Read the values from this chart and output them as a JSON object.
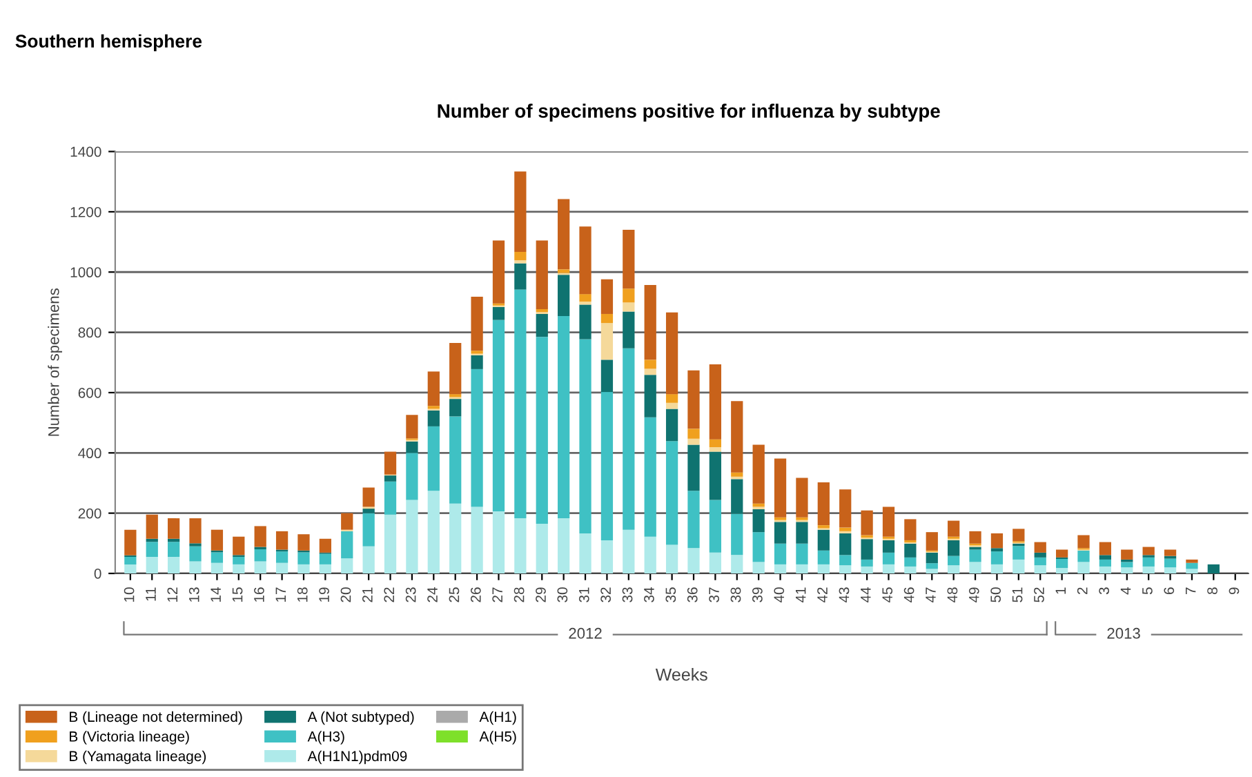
{
  "chart_data": {
    "type": "bar",
    "stacked": true,
    "title": "Southern hemisphere",
    "subtitle": "Number of specimens positive for influenza by subtype",
    "xlabel": "Weeks",
    "ylabel": "Number of specimens",
    "annotations": [
      "2012",
      "2013"
    ],
    "categories": [
      "10",
      "11",
      "12",
      "13",
      "14",
      "15",
      "16",
      "17",
      "18",
      "19",
      "20",
      "21",
      "22",
      "23",
      "24",
      "25",
      "26",
      "27",
      "28",
      "29",
      "30",
      "31",
      "32",
      "33",
      "34",
      "35",
      "36",
      "37",
      "38",
      "39",
      "40",
      "41",
      "42",
      "43",
      "44",
      "45",
      "46",
      "47",
      "48",
      "49",
      "50",
      "51",
      "52",
      "1",
      "2",
      "3",
      "4",
      "5",
      "6",
      "7",
      "8",
      "9"
    ],
    "ylim": [
      0,
      1400
    ],
    "yticks": [
      0,
      200,
      400,
      600,
      800,
      1000,
      1200,
      1400
    ],
    "grid": "y",
    "legend": "bottom left",
    "series": [
      {
        "name": "A(H1N1)pdm09",
        "color": "#aeeaea",
        "values": [
          30,
          55,
          55,
          40,
          35,
          30,
          40,
          35,
          30,
          30,
          50,
          90,
          195,
          244,
          274,
          232,
          221,
          206,
          183,
          165,
          183,
          133,
          110,
          145,
          122,
          95,
          84,
          69,
          61,
          38,
          30,
          30,
          30,
          27,
          23,
          30,
          23,
          15,
          27,
          38,
          30,
          46,
          27,
          18,
          38,
          23,
          20,
          23,
          20,
          15,
          null,
          0
        ]
      },
      {
        "name": "A(H3)",
        "color": "#3fc1c4",
        "values": [
          25,
          50,
          50,
          50,
          35,
          25,
          40,
          38,
          40,
          35,
          90,
          110,
          110,
          156,
          214,
          289,
          457,
          635,
          759,
          620,
          671,
          644,
          492,
          602,
          396,
          344,
          190,
          175,
          137,
          99,
          69,
          69,
          46,
          34,
          23,
          39,
          30,
          19,
          31,
          41,
          43,
          45,
          26,
          30,
          38,
          23,
          18,
          30,
          29,
          20,
          null,
          0
        ]
      },
      {
        "name": "A (Not subtyped)",
        "color": "#0f7370",
        "values": [
          5,
          10,
          10,
          10,
          6,
          6,
          8,
          6,
          6,
          4,
          0,
          15,
          20,
          38,
          53,
          58,
          46,
          43,
          87,
          76,
          137,
          115,
          107,
          122,
          141,
          107,
          153,
          160,
          115,
          76,
          72,
          72,
          69,
          72,
          68,
          41,
          46,
          35,
          52,
          9,
          11,
          8,
          16,
          5,
          0,
          15,
          8,
          8,
          9,
          0,
          30,
          0
        ]
      },
      {
        "name": "A(H1)",
        "color": "#aaaaaa",
        "values": [
          0,
          0,
          0,
          0,
          0,
          0,
          0,
          0,
          0,
          0,
          0,
          0,
          0,
          0,
          0,
          0,
          0,
          0,
          0,
          0,
          0,
          0,
          0,
          0,
          0,
          0,
          0,
          0,
          0,
          0,
          0,
          0,
          0,
          0,
          0,
          0,
          0,
          0,
          0,
          0,
          0,
          0,
          0,
          0,
          0,
          0,
          0,
          0,
          0,
          0,
          0,
          0
        ]
      },
      {
        "name": "A(H5)",
        "color": "#7ee02a",
        "values": [
          0,
          0,
          0,
          0,
          0,
          0,
          0,
          0,
          0,
          0,
          0,
          0,
          0,
          0,
          0,
          0,
          0,
          0,
          0,
          0,
          0,
          0,
          0,
          0,
          0,
          0,
          0,
          0,
          0,
          0,
          0,
          0,
          0,
          0,
          0,
          0,
          0,
          0,
          0,
          0,
          0,
          0,
          0,
          0,
          0,
          0,
          0,
          0,
          0,
          0,
          0,
          0
        ]
      },
      {
        "name": "B (Yamagata lineage)",
        "color": "#f5d99a",
        "values": [
          0,
          0,
          0,
          0,
          0,
          0,
          0,
          0,
          0,
          0,
          5,
          6,
          3,
          5,
          5,
          6,
          5,
          5,
          10,
          6,
          6,
          10,
          122,
          30,
          20,
          20,
          20,
          15,
          8,
          8,
          6,
          6,
          5,
          7,
          5,
          5,
          4,
          3,
          5,
          5,
          0,
          3,
          0,
          0,
          3,
          0,
          0,
          0,
          0,
          0,
          0,
          0
        ]
      },
      {
        "name": "B (Victoria lineage)",
        "color": "#f0a01e",
        "values": [
          0,
          0,
          0,
          0,
          0,
          0,
          0,
          0,
          0,
          0,
          0,
          0,
          0,
          5,
          10,
          10,
          10,
          7,
          28,
          10,
          12,
          25,
          30,
          46,
          30,
          29,
          33,
          26,
          14,
          11,
          9,
          9,
          10,
          12,
          8,
          7,
          7,
          4,
          7,
          6,
          0,
          5,
          0,
          0,
          5,
          0,
          0,
          0,
          0,
          0,
          0,
          0
        ]
      },
      {
        "name": "B (Lineage not determined)",
        "color": "#c8621a",
        "values": [
          85,
          80,
          68,
          83,
          69,
          61,
          69,
          61,
          54,
          46,
          55,
          64,
          76,
          78,
          114,
          170,
          179,
          209,
          267,
          228,
          233,
          224,
          115,
          195,
          248,
          271,
          194,
          249,
          237,
          195,
          195,
          131,
          142,
          127,
          82,
          99,
          70,
          61,
          53,
          41,
          49,
          41,
          35,
          26,
          43,
          43,
          33,
          27,
          21,
          11,
          0,
          0
        ]
      }
    ]
  }
}
